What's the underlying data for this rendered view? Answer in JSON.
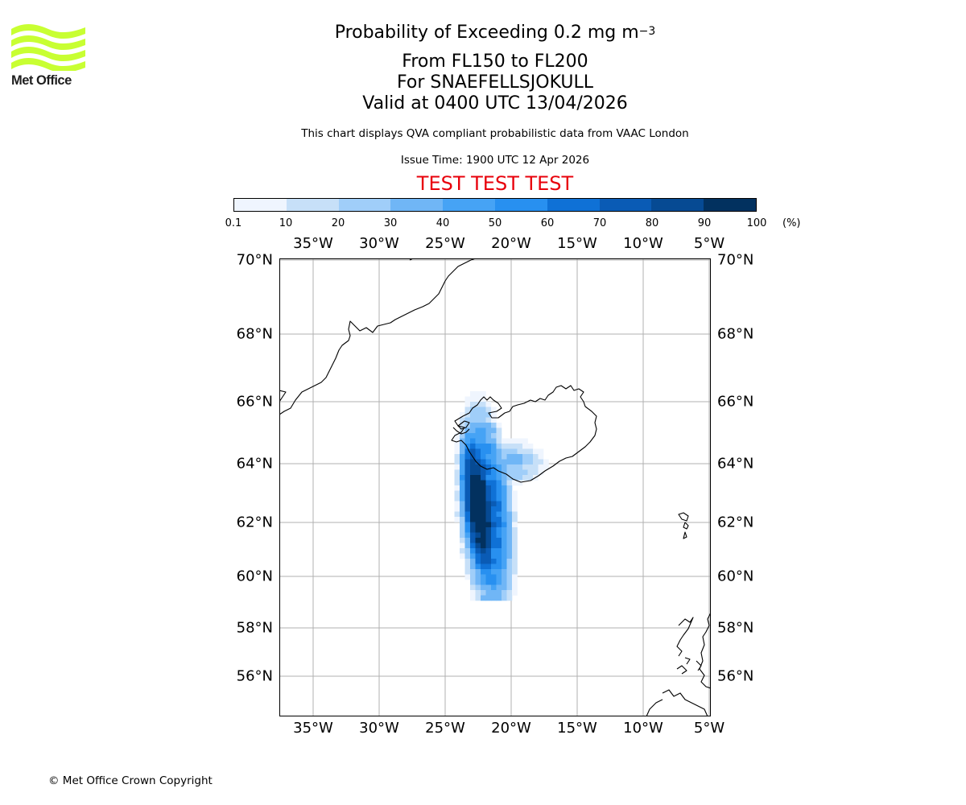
{
  "logo": {
    "text": "Met Office",
    "color": "#c8ff32"
  },
  "title": {
    "line1": "Probability of Exceeding 0.2 mg m",
    "line1_exp": "−3",
    "line2": "From FL150 to FL200",
    "line3": "For SNAEFELLSJOKULL",
    "line4": "Valid at 0400 UTC 13/04/2026"
  },
  "subtitle": "This chart displays QVA compliant probabilistic data from VAAC London",
  "issue_time": "Issue Time: 1900 UTC 12 Apr 2026",
  "test_banner": "TEST TEST TEST",
  "test_color": "#e8000b",
  "colorbar": {
    "ticks": [
      "0.1",
      "10",
      "20",
      "30",
      "40",
      "50",
      "60",
      "70",
      "80",
      "90",
      "100"
    ],
    "unit": "(%)",
    "colors": [
      "#eff5fe",
      "#c7e0f8",
      "#a0cef9",
      "#70b6f6",
      "#46a3f5",
      "#2890f0",
      "#0f71d6",
      "#0a5bb5",
      "#064a93",
      "#02315f"
    ]
  },
  "map": {
    "lon_labels": [
      "35°W",
      "30°W",
      "25°W",
      "20°W",
      "15°W",
      "10°W",
      "5°W"
    ],
    "lat_labels": [
      "70°N",
      "68°N",
      "66°N",
      "64°N",
      "62°N",
      "60°N",
      "58°N",
      "56°N"
    ],
    "lon_values": [
      -35,
      -30,
      -25,
      -20,
      -15,
      -10,
      -5
    ],
    "lat_values": [
      70,
      68,
      66,
      64,
      62,
      60,
      58,
      56
    ]
  },
  "copyright": "© Met Office Crown Copyright"
}
